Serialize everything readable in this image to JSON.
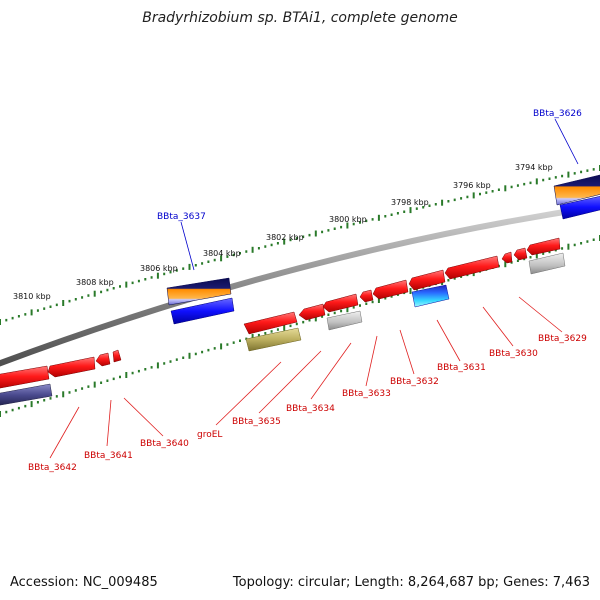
{
  "title": "Bradyrhizobium sp. BTAi1, complete genome",
  "footer": {
    "accession": "Accession: NC_009485",
    "summary": "Topology: circular; Length: 8,264,687 bp; Genes: 7,463"
  },
  "colors": {
    "backbone": "#8c8c8c",
    "tick": "#2a7a2a",
    "gene_red": "#ff1010",
    "label_red": "#cc0000",
    "label_blue": "#0000cc"
  },
  "scale_labels": [
    "3810 kbp",
    "3808 kbp",
    "3806 kbp",
    "3804 kbp",
    "3802 kbp",
    "3800 kbp",
    "3798 kbp",
    "3796 kbp",
    "3794 kbp"
  ],
  "gene_labels": [
    {
      "text": "BBta_3626",
      "color": "blue"
    },
    {
      "text": "BBta_3637",
      "color": "blue"
    },
    {
      "text": "BBta_3642",
      "color": "red"
    },
    {
      "text": "BBta_3641",
      "color": "red"
    },
    {
      "text": "BBta_3640",
      "color": "red"
    },
    {
      "text": "groEL",
      "color": "red"
    },
    {
      "text": "BBta_3635",
      "color": "red"
    },
    {
      "text": "BBta_3634",
      "color": "red"
    },
    {
      "text": "BBta_3633",
      "color": "red"
    },
    {
      "text": "BBta_3632",
      "color": "red"
    },
    {
      "text": "BBta_3631",
      "color": "red"
    },
    {
      "text": "BBta_3630",
      "color": "red"
    },
    {
      "text": "BBta_3629",
      "color": "red"
    }
  ]
}
